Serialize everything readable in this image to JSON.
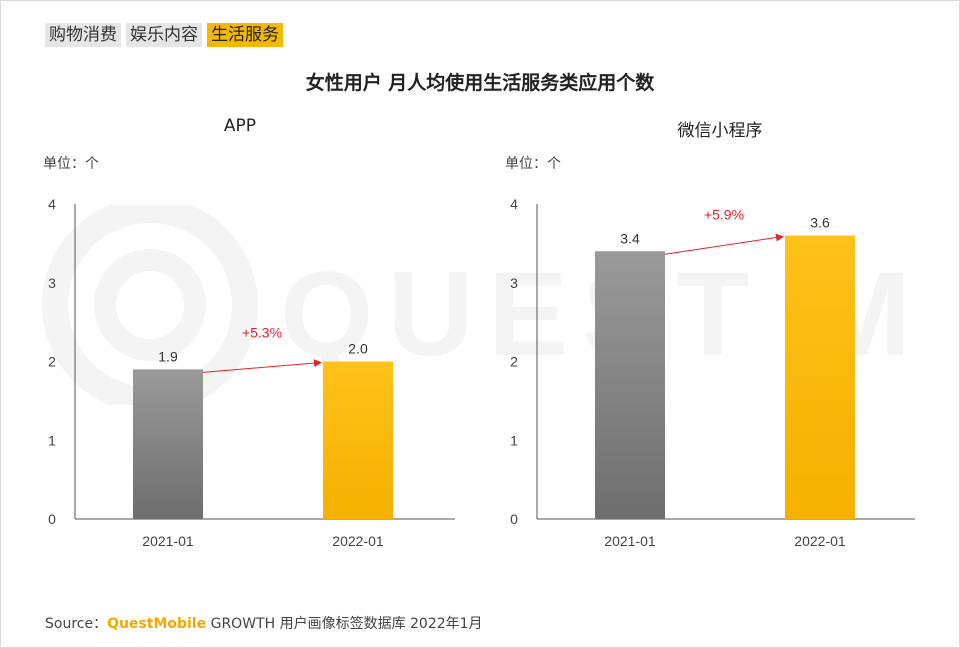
{
  "tabs": [
    {
      "label": "购物消费",
      "active": false
    },
    {
      "label": "娱乐内容",
      "active": false
    },
    {
      "label": "生活服务",
      "active": true
    }
  ],
  "main_title": "女性用户 月人均使用生活服务类应用个数",
  "colors": {
    "gray_top": "#9a9a9a",
    "gray_bottom": "#707070",
    "gold_top": "#ffc21a",
    "gold_bottom": "#f5b000",
    "arrow": "#e8212b"
  },
  "chart_data": [
    {
      "type": "bar",
      "title": "APP",
      "unit_label": "单位：个",
      "categories": [
        "2021-01",
        "2022-01"
      ],
      "values": [
        1.9,
        2.0
      ],
      "value_labels": [
        "1.9",
        "2.0"
      ],
      "ylim": [
        0,
        4
      ],
      "yticks": [
        "0",
        "1",
        "2",
        "3",
        "4"
      ],
      "growth_label": "+5.3%"
    },
    {
      "type": "bar",
      "title": "微信小程序",
      "unit_label": "单位：个",
      "categories": [
        "2021-01",
        "2022-01"
      ],
      "values": [
        3.4,
        3.6
      ],
      "value_labels": [
        "3.4",
        "3.6"
      ],
      "ylim": [
        0,
        4
      ],
      "yticks": [
        "0",
        "1",
        "2",
        "3",
        "4"
      ],
      "growth_label": "+5.9%"
    }
  ],
  "source": {
    "prefix": "Source：",
    "brand": "QuestMobile",
    "rest": " GROWTH 用户画像标签数据库 2022年1月"
  }
}
